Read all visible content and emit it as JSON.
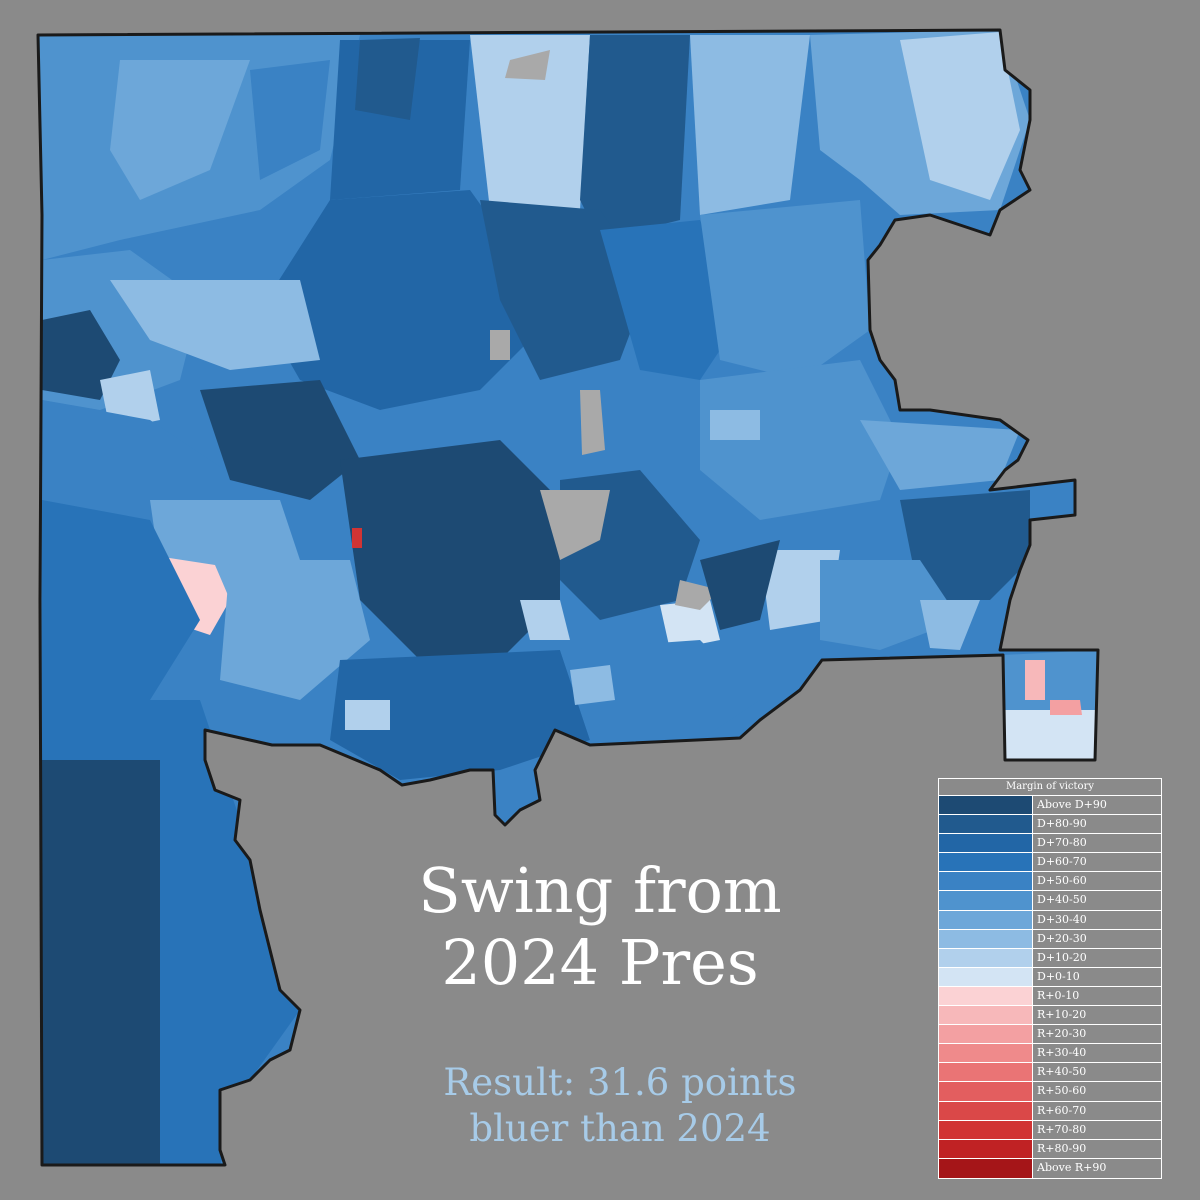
{
  "title": {
    "line1": "Swing from",
    "line2": "2024 Pres"
  },
  "subtitle": {
    "line1": "Result: 31.6 points",
    "line2": "bluer than 2024"
  },
  "legend": {
    "title": "Margin of victory",
    "items": [
      {
        "label": "Above D+90",
        "color": "#1d4a73"
      },
      {
        "label": "D+80-90",
        "color": "#215a8e"
      },
      {
        "label": "D+70-80",
        "color": "#2266a6"
      },
      {
        "label": "D+60-70",
        "color": "#2873b8"
      },
      {
        "label": "D+50-60",
        "color": "#3a82c4"
      },
      {
        "label": "D+40-50",
        "color": "#4f93ce"
      },
      {
        "label": "D+30-40",
        "color": "#6da7d9"
      },
      {
        "label": "D+20-30",
        "color": "#8dbbe3"
      },
      {
        "label": "D+10-20",
        "color": "#b1d0ec"
      },
      {
        "label": "D+0-10",
        "color": "#d3e4f4"
      },
      {
        "label": "R+0-10",
        "color": "#fbd2d4"
      },
      {
        "label": "R+10-20",
        "color": "#f7b8ba"
      },
      {
        "label": "R+20-30",
        "color": "#f3a0a2"
      },
      {
        "label": "R+30-40",
        "color": "#ef8a8b"
      },
      {
        "label": "R+40-50",
        "color": "#ea7475"
      },
      {
        "label": "R+50-60",
        "color": "#e35e5f"
      },
      {
        "label": "R+60-70",
        "color": "#da4848"
      },
      {
        "label": "R+70-80",
        "color": "#d13434"
      },
      {
        "label": "R+80-90",
        "color": "#c02224"
      },
      {
        "label": "Above R+90",
        "color": "#a51518"
      }
    ]
  },
  "colors": {
    "background": "#8a8a8a",
    "no_data": "#a9a9a9",
    "border": "#1a1a1a"
  }
}
